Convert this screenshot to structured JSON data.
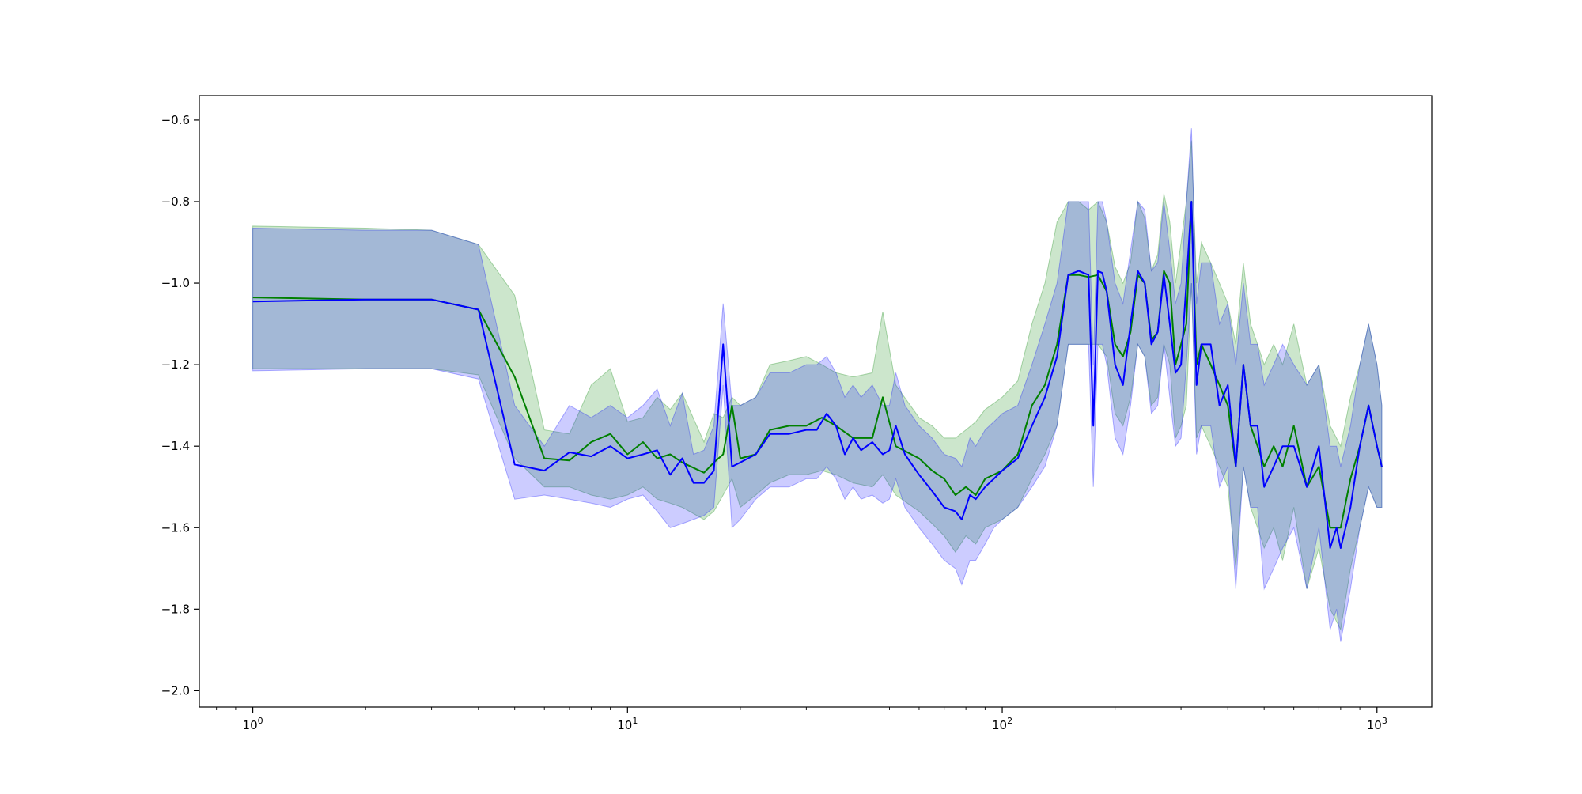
{
  "chart_data": {
    "type": "line",
    "title": "",
    "xlabel": "",
    "ylabel": "",
    "x_scale": "log",
    "xlim": [
      0.72,
      1400
    ],
    "ylim": [
      -2.04,
      -0.54
    ],
    "x_ticks": [
      {
        "value": 1,
        "base": "10",
        "exp": "0"
      },
      {
        "value": 10,
        "base": "10",
        "exp": "1"
      },
      {
        "value": 100,
        "base": "10",
        "exp": "2"
      },
      {
        "value": 1000,
        "base": "10",
        "exp": "3"
      }
    ],
    "y_ticks": [
      {
        "value": -0.6,
        "label": "−0.6"
      },
      {
        "value": -0.8,
        "label": "−0.8"
      },
      {
        "value": -1.0,
        "label": "−1.0"
      },
      {
        "value": -1.2,
        "label": "−1.2"
      },
      {
        "value": -1.4,
        "label": "−1.4"
      },
      {
        "value": -1.6,
        "label": "−1.6"
      },
      {
        "value": -1.8,
        "label": "−1.8"
      },
      {
        "value": -2.0,
        "label": "−2.0"
      }
    ],
    "grid": false,
    "legend": "none",
    "series": [
      {
        "color": "#008000",
        "band_color": "#008000",
        "band_opacity": 0.2,
        "x": [
          1,
          2,
          3,
          4,
          5,
          6,
          7,
          8,
          9,
          10,
          11,
          12,
          13,
          14,
          16,
          17,
          18,
          19,
          20,
          22,
          24,
          27,
          30,
          33,
          36,
          40,
          45,
          48,
          52,
          60,
          65,
          70,
          75,
          80,
          85,
          90,
          100,
          110,
          120,
          130,
          140,
          150,
          160,
          170,
          180,
          190,
          200,
          210,
          220,
          230,
          240,
          250,
          260,
          270,
          280,
          290,
          300,
          310,
          320,
          330,
          340,
          360,
          380,
          400,
          420,
          440,
          460,
          480,
          500,
          530,
          560,
          600,
          650,
          700,
          750,
          800,
          850,
          900,
          950,
          1000,
          1030
        ],
        "y": [
          -1.035,
          -1.04,
          -1.04,
          -1.065,
          -1.23,
          -1.43,
          -1.435,
          -1.39,
          -1.37,
          -1.42,
          -1.39,
          -1.43,
          -1.42,
          -1.44,
          -1.465,
          -1.44,
          -1.42,
          -1.3,
          -1.43,
          -1.42,
          -1.36,
          -1.35,
          -1.35,
          -1.33,
          -1.35,
          -1.38,
          -1.38,
          -1.28,
          -1.4,
          -1.43,
          -1.46,
          -1.48,
          -1.52,
          -1.5,
          -1.52,
          -1.48,
          -1.46,
          -1.42,
          -1.3,
          -1.25,
          -1.15,
          -0.98,
          -0.98,
          -0.985,
          -0.98,
          -1.02,
          -1.15,
          -1.18,
          -1.12,
          -0.98,
          -1.0,
          -1.14,
          -1.12,
          -0.97,
          -1.0,
          -1.2,
          -1.15,
          -1.1,
          -0.8,
          -1.2,
          -1.15,
          -1.2,
          -1.25,
          -1.3,
          -1.45,
          -1.2,
          -1.35,
          -1.4,
          -1.45,
          -1.4,
          -1.45,
          -1.35,
          -1.5,
          -1.45,
          -1.6,
          -1.6,
          -1.48,
          -1.4,
          -1.3,
          -1.4,
          -1.45
        ],
        "upper": [
          -0.86,
          -0.865,
          -0.87,
          -0.905,
          -1.03,
          -1.36,
          -1.37,
          -1.25,
          -1.21,
          -1.34,
          -1.33,
          -1.28,
          -1.31,
          -1.27,
          -1.39,
          -1.32,
          -1.33,
          -1.28,
          -1.3,
          -1.28,
          -1.2,
          -1.19,
          -1.18,
          -1.2,
          -1.22,
          -1.23,
          -1.22,
          -1.07,
          -1.25,
          -1.33,
          -1.35,
          -1.38,
          -1.38,
          -1.36,
          -1.34,
          -1.31,
          -1.28,
          -1.24,
          -1.1,
          -1.0,
          -0.85,
          -0.8,
          -0.8,
          -0.82,
          -0.8,
          -0.85,
          -0.96,
          -1.0,
          -0.95,
          -0.8,
          -0.84,
          -0.97,
          -0.93,
          -0.78,
          -0.85,
          -1.0,
          -0.9,
          -0.8,
          -0.65,
          -1.0,
          -0.9,
          -0.95,
          -1.0,
          -1.05,
          -1.15,
          -0.95,
          -1.1,
          -1.15,
          -1.2,
          -1.15,
          -1.2,
          -1.1,
          -1.25,
          -1.2,
          -1.35,
          -1.4,
          -1.28,
          -1.2,
          -1.1,
          -1.2,
          -1.3
        ],
        "lower": [
          -1.21,
          -1.21,
          -1.21,
          -1.225,
          -1.43,
          -1.5,
          -1.5,
          -1.52,
          -1.53,
          -1.52,
          -1.5,
          -1.53,
          -1.54,
          -1.55,
          -1.58,
          -1.56,
          -1.52,
          -1.48,
          -1.55,
          -1.52,
          -1.49,
          -1.47,
          -1.47,
          -1.46,
          -1.47,
          -1.49,
          -1.5,
          -1.47,
          -1.52,
          -1.56,
          -1.59,
          -1.62,
          -1.66,
          -1.62,
          -1.64,
          -1.6,
          -1.58,
          -1.55,
          -1.48,
          -1.42,
          -1.35,
          -1.15,
          -1.15,
          -1.15,
          -1.15,
          -1.18,
          -1.32,
          -1.35,
          -1.28,
          -1.15,
          -1.18,
          -1.3,
          -1.28,
          -1.15,
          -1.2,
          -1.38,
          -1.35,
          -1.3,
          -1.0,
          -1.38,
          -1.35,
          -1.4,
          -1.45,
          -1.5,
          -1.7,
          -1.45,
          -1.55,
          -1.6,
          -1.65,
          -1.6,
          -1.68,
          -1.55,
          -1.75,
          -1.65,
          -1.8,
          -1.85,
          -1.7,
          -1.6,
          -1.5,
          -1.55,
          -1.55
        ]
      },
      {
        "color": "#0000ff",
        "band_color": "#0000ff",
        "band_opacity": 0.2,
        "x": [
          1,
          2,
          3,
          4,
          5,
          6,
          7,
          8,
          9,
          10,
          11,
          12,
          13,
          14,
          15,
          16,
          17,
          18,
          19,
          20,
          22,
          24,
          27,
          30,
          32,
          34,
          36,
          38,
          40,
          42,
          45,
          48,
          50,
          52,
          55,
          60,
          65,
          70,
          75,
          78,
          82,
          85,
          90,
          95,
          100,
          110,
          120,
          130,
          140,
          150,
          160,
          170,
          175,
          180,
          185,
          190,
          200,
          210,
          220,
          230,
          240,
          250,
          260,
          270,
          280,
          290,
          300,
          310,
          320,
          330,
          340,
          360,
          380,
          400,
          420,
          440,
          460,
          480,
          500,
          530,
          560,
          600,
          650,
          700,
          750,
          780,
          800,
          850,
          900,
          950,
          1000,
          1030
        ],
        "y": [
          -1.045,
          -1.04,
          -1.04,
          -1.065,
          -1.445,
          -1.46,
          -1.415,
          -1.425,
          -1.4,
          -1.43,
          -1.42,
          -1.41,
          -1.47,
          -1.43,
          -1.49,
          -1.49,
          -1.46,
          -1.15,
          -1.45,
          -1.44,
          -1.42,
          -1.37,
          -1.37,
          -1.36,
          -1.36,
          -1.32,
          -1.35,
          -1.42,
          -1.38,
          -1.41,
          -1.39,
          -1.42,
          -1.41,
          -1.35,
          -1.42,
          -1.47,
          -1.51,
          -1.55,
          -1.56,
          -1.58,
          -1.52,
          -1.53,
          -1.5,
          -1.48,
          -1.46,
          -1.43,
          -1.35,
          -1.28,
          -1.18,
          -0.98,
          -0.97,
          -0.98,
          -1.35,
          -0.97,
          -0.975,
          -1.02,
          -1.2,
          -1.25,
          -1.1,
          -0.97,
          -1.0,
          -1.15,
          -1.12,
          -0.98,
          -1.1,
          -1.22,
          -1.2,
          -1.0,
          -0.8,
          -1.25,
          -1.15,
          -1.15,
          -1.3,
          -1.25,
          -1.45,
          -1.2,
          -1.35,
          -1.35,
          -1.5,
          -1.45,
          -1.4,
          -1.4,
          -1.5,
          -1.4,
          -1.65,
          -1.6,
          -1.65,
          -1.55,
          -1.4,
          -1.3,
          -1.4,
          -1.45
        ],
        "upper": [
          -0.865,
          -0.87,
          -0.87,
          -0.905,
          -1.3,
          -1.4,
          -1.3,
          -1.33,
          -1.3,
          -1.33,
          -1.3,
          -1.26,
          -1.35,
          -1.27,
          -1.42,
          -1.41,
          -1.35,
          -1.05,
          -1.3,
          -1.3,
          -1.28,
          -1.22,
          -1.22,
          -1.2,
          -1.2,
          -1.18,
          -1.22,
          -1.28,
          -1.25,
          -1.28,
          -1.25,
          -1.3,
          -1.3,
          -1.22,
          -1.3,
          -1.35,
          -1.38,
          -1.42,
          -1.43,
          -1.45,
          -1.38,
          -1.4,
          -1.36,
          -1.34,
          -1.32,
          -1.3,
          -1.2,
          -1.1,
          -1.0,
          -0.8,
          -0.8,
          -0.8,
          -1.2,
          -0.8,
          -0.8,
          -0.85,
          -1.0,
          -1.05,
          -0.92,
          -0.8,
          -0.82,
          -0.97,
          -0.95,
          -0.8,
          -0.92,
          -1.05,
          -1.0,
          -0.8,
          -0.62,
          -1.05,
          -0.95,
          -0.95,
          -1.1,
          -1.05,
          -1.2,
          -1.0,
          -1.15,
          -1.15,
          -1.25,
          -1.2,
          -1.15,
          -1.2,
          -1.25,
          -1.2,
          -1.4,
          -1.4,
          -1.45,
          -1.35,
          -1.2,
          -1.1,
          -1.2,
          -1.3
        ],
        "lower": [
          -1.215,
          -1.21,
          -1.21,
          -1.235,
          -1.53,
          -1.52,
          -1.53,
          -1.54,
          -1.55,
          -1.53,
          -1.52,
          -1.56,
          -1.6,
          -1.59,
          -1.58,
          -1.57,
          -1.55,
          -1.25,
          -1.6,
          -1.58,
          -1.53,
          -1.5,
          -1.5,
          -1.48,
          -1.48,
          -1.45,
          -1.48,
          -1.53,
          -1.5,
          -1.53,
          -1.52,
          -1.54,
          -1.53,
          -1.48,
          -1.55,
          -1.6,
          -1.64,
          -1.68,
          -1.7,
          -1.74,
          -1.68,
          -1.68,
          -1.64,
          -1.6,
          -1.58,
          -1.55,
          -1.5,
          -1.45,
          -1.35,
          -1.15,
          -1.15,
          -1.15,
          -1.5,
          -1.15,
          -1.15,
          -1.2,
          -1.38,
          -1.42,
          -1.3,
          -1.15,
          -1.18,
          -1.32,
          -1.3,
          -1.15,
          -1.28,
          -1.4,
          -1.38,
          -1.2,
          -1.0,
          -1.42,
          -1.35,
          -1.35,
          -1.5,
          -1.45,
          -1.75,
          -1.45,
          -1.55,
          -1.55,
          -1.75,
          -1.7,
          -1.65,
          -1.6,
          -1.75,
          -1.6,
          -1.85,
          -1.8,
          -1.88,
          -1.75,
          -1.6,
          -1.5,
          -1.55,
          -1.55
        ]
      }
    ]
  }
}
